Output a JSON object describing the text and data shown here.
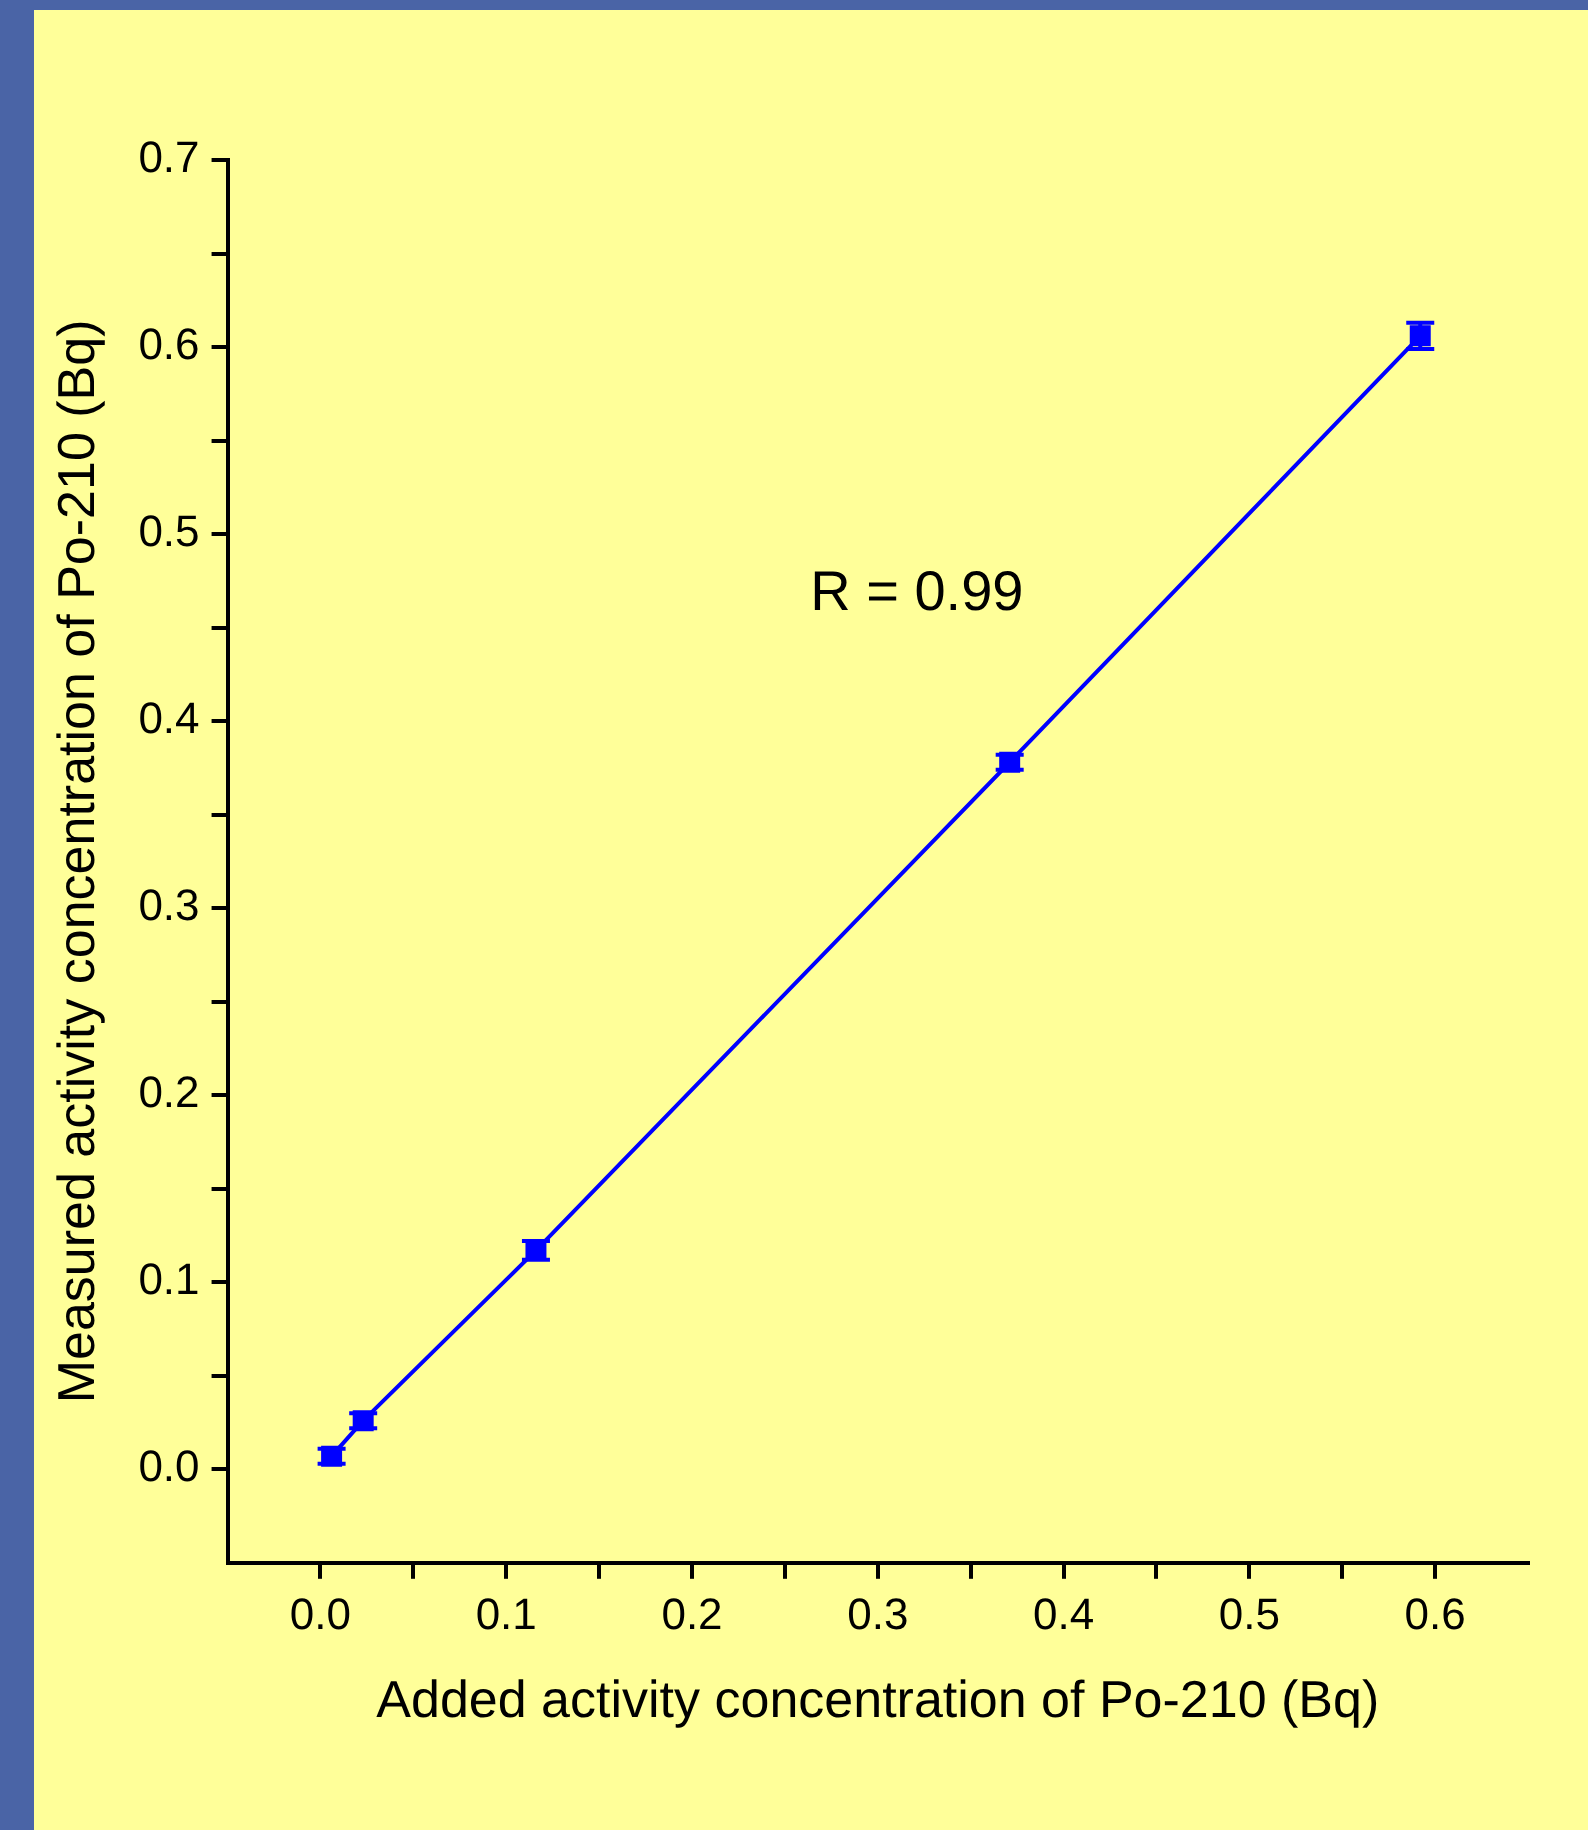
{
  "chart_data": {
    "type": "line",
    "xlabel": "Added activity concentration of Po-210 (Bq)",
    "ylabel": "Measured activity concentration of Po-210 (Bq)",
    "x": [
      0.006,
      0.023,
      0.116,
      0.371,
      0.592
    ],
    "series": [
      {
        "name": null,
        "color": "#0000ff",
        "values": [
          0.007,
          0.026,
          0.117,
          0.378,
          0.606
        ],
        "errors": [
          0.004,
          0.004,
          0.005,
          0.004,
          0.007
        ]
      }
    ],
    "marker": "square",
    "line_style": "solid",
    "grid": false,
    "legend": false,
    "xlim": [
      -0.05,
      0.65
    ],
    "ylim": [
      -0.05,
      0.7
    ],
    "xticks": [
      {
        "value": 0.0,
        "label": "0.0"
      },
      {
        "value": 0.05,
        "label": null
      },
      0.1,
      {
        "value": 0.15,
        "label": null
      },
      0.2,
      {
        "value": 0.25,
        "label": null
      },
      0.3,
      {
        "value": 0.35,
        "label": null
      },
      0.4,
      {
        "value": 0.45,
        "label": null
      },
      0.5,
      {
        "value": 0.55,
        "label": null
      },
      0.6
    ],
    "yticks": [
      {
        "value": 0.0,
        "label": "0.0"
      },
      {
        "value": 0.05,
        "label": null
      },
      0.1,
      {
        "value": 0.15,
        "label": null
      },
      0.2,
      {
        "value": 0.25,
        "label": null
      },
      0.3,
      {
        "value": 0.35,
        "label": null
      },
      0.4,
      {
        "value": 0.45,
        "label": null
      },
      0.5,
      {
        "value": 0.55,
        "label": null
      },
      0.6,
      {
        "value": 0.65,
        "label": null
      },
      0.7
    ],
    "annotations": [
      "R = 0.99"
    ]
  }
}
